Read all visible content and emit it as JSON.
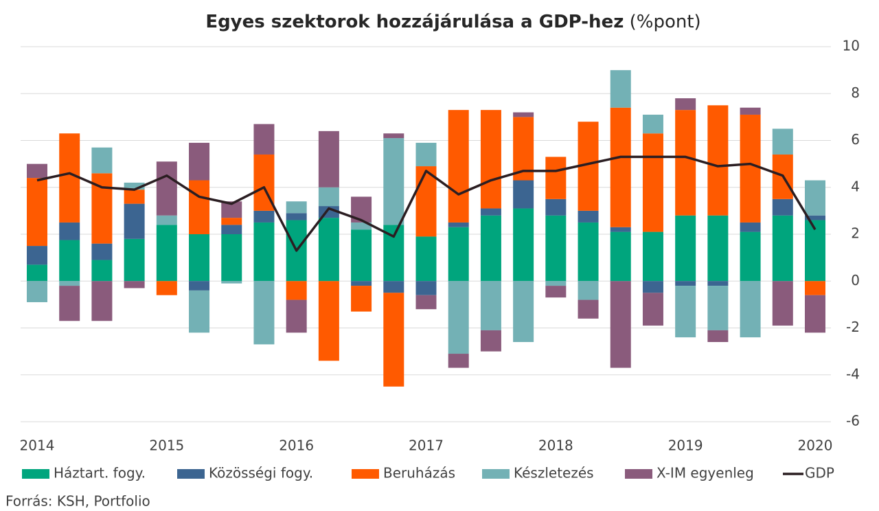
{
  "chart_data": {
    "type": "stacked_bar_line",
    "title": "Egyes szektorok hozzájárulása a GDP-hez",
    "unit": "(%pont)",
    "source": "Forrás: KSH, Portfolio",
    "categories": [
      "2014",
      null,
      null,
      null,
      "2015",
      null,
      null,
      null,
      "2016",
      null,
      null,
      null,
      "2017",
      null,
      null,
      null,
      "2018",
      null,
      null,
      null,
      "2019",
      null,
      null,
      null,
      "2020"
    ],
    "series": [
      {
        "name": "Háztart. fogy.",
        "color": "#00a57d",
        "values": [
          0.7,
          1.75,
          0.9,
          1.8,
          2.4,
          2.0,
          2.0,
          2.5,
          2.6,
          2.7,
          2.2,
          2.4,
          1.9,
          2.3,
          2.8,
          3.1,
          2.8,
          2.5,
          2.1,
          2.1,
          2.8,
          2.8,
          2.1,
          2.8,
          2.6
        ]
      },
      {
        "name": "Közösségi fogy.",
        "color": "#3c6591",
        "values": [
          0.8,
          0.75,
          0.7,
          1.5,
          0,
          -0.4,
          0.4,
          0.5,
          0.3,
          0.5,
          -0.2,
          -0.5,
          -0.6,
          0.2,
          0.3,
          1.2,
          0.7,
          0.5,
          0.2,
          -0.5,
          -0.2,
          -0.2,
          0.4,
          0.7,
          0.2
        ]
      },
      {
        "name": "Beruházás",
        "color": "#ff5a00",
        "values": [
          2.9,
          3.8,
          3.0,
          0.6,
          -0.6,
          2.3,
          0.3,
          2.4,
          -0.8,
          -3.4,
          -1.1,
          -4.0,
          3.0,
          4.8,
          4.2,
          2.7,
          1.8,
          3.8,
          5.1,
          4.2,
          4.5,
          4.7,
          4.6,
          1.9,
          -0.6
        ]
      },
      {
        "name": "Készletezés",
        "color": "#73b1b5",
        "values": [
          -0.9,
          -0.2,
          1.1,
          0.3,
          0.4,
          -1.8,
          -0.1,
          -2.7,
          0.5,
          0.8,
          0.3,
          3.7,
          1.0,
          -3.1,
          -2.1,
          -2.6,
          -0.2,
          -0.8,
          1.6,
          0.8,
          -2.2,
          -1.9,
          -2.4,
          1.1,
          1.5
        ]
      },
      {
        "name": "X-IM egyenleg",
        "color": "#8a5b7c",
        "values": [
          0.6,
          -1.5,
          -1.7,
          -0.3,
          2.3,
          1.6,
          0.7,
          1.3,
          -1.4,
          2.4,
          1.1,
          0.2,
          -0.6,
          -0.6,
          -0.9,
          0.2,
          -0.5,
          -0.8,
          -3.7,
          -1.4,
          0.5,
          -0.5,
          0.3,
          -1.9,
          -1.6
        ]
      },
      {
        "name": "GDP",
        "color": "#2b1e22",
        "type": "line",
        "values": [
          4.3,
          4.6,
          4.0,
          3.9,
          4.5,
          3.6,
          3.3,
          4.0,
          1.3,
          3.1,
          2.6,
          1.9,
          4.7,
          3.7,
          4.3,
          4.7,
          4.7,
          5.0,
          5.3,
          5.3,
          5.3,
          4.9,
          5.0,
          4.5,
          2.2
        ]
      }
    ],
    "ylim": [
      -6,
      10
    ],
    "yticks": [
      -6,
      -4,
      -2,
      0,
      2,
      4,
      6,
      8,
      10
    ],
    "grid": true,
    "legend": "bottom"
  }
}
